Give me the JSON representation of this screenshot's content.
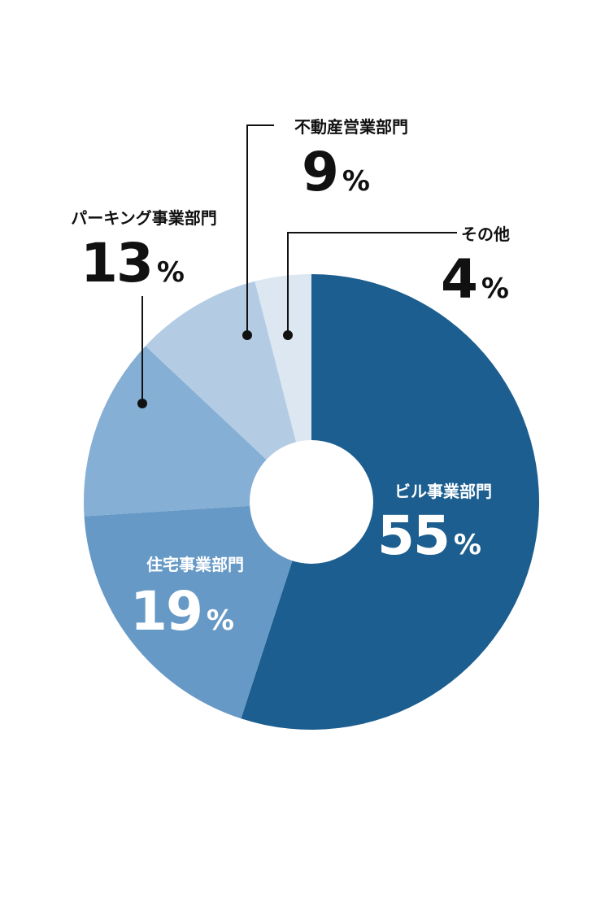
{
  "chart_data": {
    "type": "pie",
    "donut": true,
    "unit": "%",
    "slices": [
      {
        "label": "ビル事業部門",
        "value": 55,
        "color": "#1b5e8f",
        "text_color": "#ffffff"
      },
      {
        "label": "住宅事業部門",
        "value": 19,
        "color": "#6699c6",
        "text_color": "#ffffff"
      },
      {
        "label": "パーキング事業部門",
        "value": 13,
        "color": "#85afd4",
        "text_color": "#111111"
      },
      {
        "label": "不動産営業部門",
        "value": 9,
        "color": "#b3cce4",
        "text_color": "#111111"
      },
      {
        "label": "その他",
        "value": 4,
        "color": "#dce7f2",
        "text_color": "#111111"
      }
    ],
    "start_angle": "12 o'clock",
    "direction": "clockwise"
  }
}
